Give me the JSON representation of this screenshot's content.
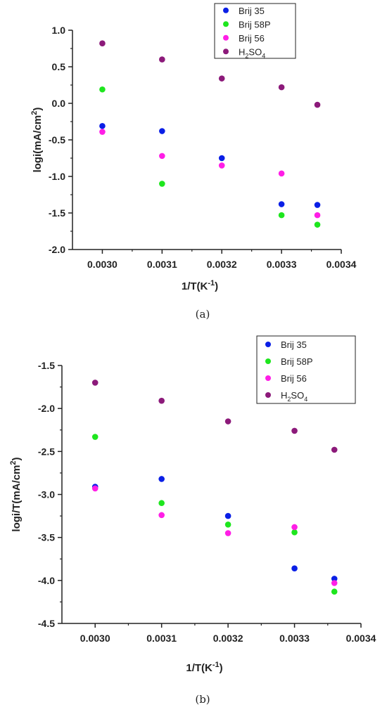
{
  "chart_data": [
    {
      "type": "scatter",
      "panel_label": "(a)",
      "xlabel": "1/T(K",
      "xlabel_sup": "-1",
      "xlabel_end": ")",
      "ylabel": "logi(mA/cm",
      "ylabel_sup": "2",
      "ylabel_end": ")",
      "xlim": [
        0.00295,
        0.0034
      ],
      "ylim": [
        -2.0,
        1.0
      ],
      "x_ticks": [
        "0.0030",
        "0.0031",
        "0.0032",
        "0.0033",
        "0.0034"
      ],
      "y_ticks": [
        "-2.0",
        "-1.5",
        "-1.0",
        "-0.5",
        "0.0",
        "0.5",
        "1.0"
      ],
      "legend_position": "top-right",
      "series": [
        {
          "name": "Brij 35",
          "color": "#0a1fe6",
          "x": [
            0.003,
            0.0031,
            0.0032,
            0.0033,
            0.00336
          ],
          "y": [
            -0.31,
            -0.38,
            -0.75,
            -1.38,
            -1.39
          ]
        },
        {
          "name": "Brij 58P",
          "color": "#1ee61e",
          "x": [
            0.003,
            0.0031,
            0.0033,
            0.00336
          ],
          "y": [
            0.19,
            -1.1,
            -1.53,
            -1.66
          ]
        },
        {
          "name": "Brij 56",
          "color": "#ff1ee6",
          "x": [
            0.003,
            0.0031,
            0.0032,
            0.0033,
            0.00336
          ],
          "y": [
            -0.39,
            -0.72,
            -0.85,
            -0.96,
            -1.53
          ]
        },
        {
          "name": "H2SO4",
          "name_base": "H",
          "name_sub1": "2",
          "name_mid": "SO",
          "name_sub2": "4",
          "color": "#8c1a7a",
          "x": [
            0.003,
            0.0031,
            0.0032,
            0.0033,
            0.00336
          ],
          "y": [
            0.82,
            0.6,
            0.34,
            0.22,
            -0.02
          ]
        }
      ]
    },
    {
      "type": "scatter",
      "panel_label": "(b)",
      "xlabel": "1/T(K",
      "xlabel_sup": "-1",
      "xlabel_end": ")",
      "ylabel": "logi/T(mA/cm",
      "ylabel_sup": "2",
      "ylabel_end": ")",
      "xlim": [
        0.00295,
        0.0034
      ],
      "ylim": [
        -4.5,
        -1.5
      ],
      "x_ticks": [
        "0.0030",
        "0.0031",
        "0.0032",
        "0.0033",
        "0.0034"
      ],
      "y_ticks": [
        "-4.5",
        "-4.0",
        "-3.5",
        "-3.0",
        "-2.5",
        "-2.0",
        "-1.5"
      ],
      "legend_position": "top-right",
      "series": [
        {
          "name": "Brij 35",
          "color": "#0a1fe6",
          "x": [
            0.003,
            0.0031,
            0.0032,
            0.0033,
            0.00336
          ],
          "y": [
            -2.91,
            -2.82,
            -3.25,
            -3.86,
            -3.98
          ]
        },
        {
          "name": "Brij 58P",
          "color": "#1ee61e",
          "x": [
            0.003,
            0.0031,
            0.0032,
            0.0033,
            0.00336
          ],
          "y": [
            -2.33,
            -3.1,
            -3.35,
            -3.44,
            -4.13
          ]
        },
        {
          "name": "Brij 56",
          "color": "#ff1ee6",
          "x": [
            0.003,
            0.0031,
            0.0032,
            0.0033,
            0.00336
          ],
          "y": [
            -2.93,
            -3.24,
            -3.45,
            -3.38,
            -4.03
          ]
        },
        {
          "name": "H2SO4",
          "name_base": "H",
          "name_sub1": "2",
          "name_mid": "SO",
          "name_sub2": "4",
          "color": "#8c1a7a",
          "x": [
            0.003,
            0.0031,
            0.0032,
            0.0033,
            0.00336
          ],
          "y": [
            -1.7,
            -1.91,
            -2.15,
            -2.26,
            -2.48
          ]
        }
      ]
    }
  ]
}
